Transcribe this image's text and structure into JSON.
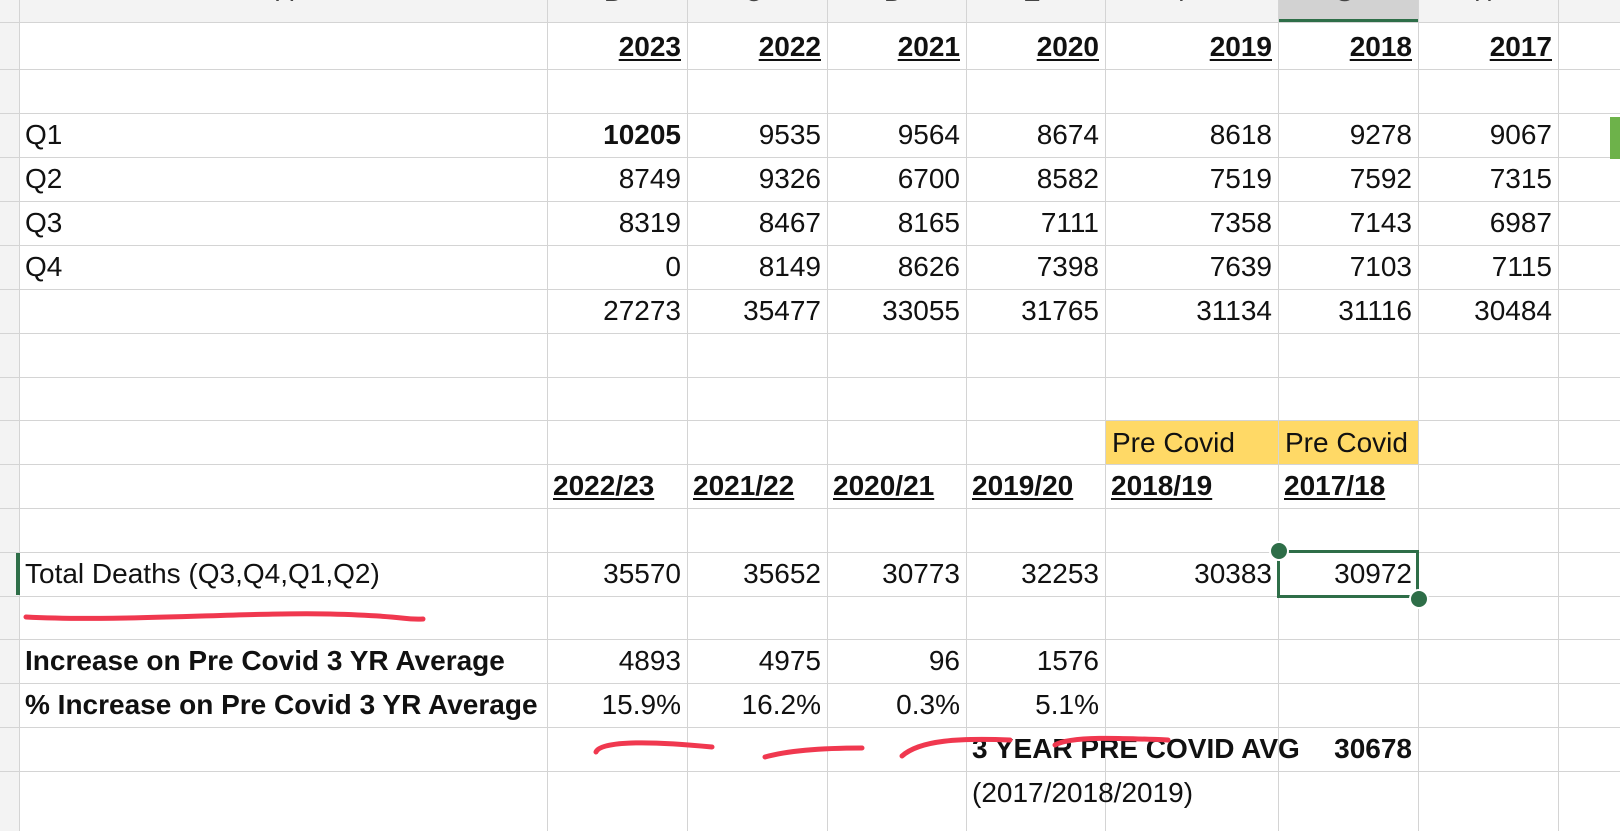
{
  "columns": {
    "letters": [
      "A",
      "B",
      "C",
      "D",
      "E",
      "F",
      "G",
      "H"
    ]
  },
  "quarterly": {
    "years": [
      "2023",
      "2022",
      "2021",
      "2020",
      "2019",
      "2018",
      "2017"
    ],
    "rows": [
      {
        "label": "Q1",
        "values": [
          "10205",
          "9535",
          "9564",
          "8674",
          "8618",
          "9278",
          "9067"
        ]
      },
      {
        "label": "Q2",
        "values": [
          "8749",
          "9326",
          "6700",
          "8582",
          "7519",
          "7592",
          "7315"
        ]
      },
      {
        "label": "Q3",
        "values": [
          "8319",
          "8467",
          "8165",
          "7111",
          "7358",
          "7143",
          "6987"
        ]
      },
      {
        "label": "Q4",
        "values": [
          "0",
          "8149",
          "8626",
          "7398",
          "7639",
          "7103",
          "7115"
        ]
      }
    ],
    "totals": [
      "27273",
      "35477",
      "33055",
      "31765",
      "31134",
      "31116",
      "30484"
    ]
  },
  "fiscal": {
    "pre_covid_label": "Pre Covid",
    "periods": [
      "2022/23",
      "2021/22",
      "2020/21",
      "2019/20",
      "2018/19",
      "2017/18"
    ],
    "total_deaths_label": "Total Deaths (Q3,Q4,Q1,Q2)",
    "total_deaths": [
      "35570",
      "35652",
      "30773",
      "32253",
      "30383",
      "30972"
    ],
    "increase_label": "Increase on Pre Covid 3 YR Average",
    "increase": [
      "4893",
      "4975",
      "96",
      "1576"
    ],
    "pct_increase_label": "% Increase on Pre Covid 3 YR Average",
    "pct_increase": [
      "15.9%",
      "16.2%",
      "0.3%",
      "5.1%"
    ],
    "avg_label": "3 YEAR PRE COVID AVG",
    "avg_value": "30678",
    "avg_years": "(2017/2018/2019)"
  },
  "colors": {
    "highlight": "#ffd966",
    "selection": "#2e6e48",
    "annotation": "#f0384f"
  }
}
